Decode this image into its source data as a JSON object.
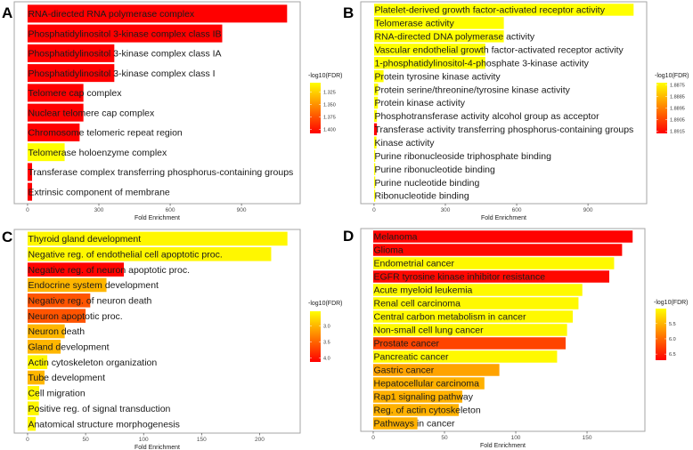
{
  "colors": {
    "low": "#FFFF00",
    "high": "#FF0000",
    "frame": "#A6A6A6"
  },
  "chart_data": [
    {
      "panel": "A",
      "type": "bar",
      "orientation": "horizontal",
      "xlabel": "Fold Enrichment",
      "xlim": [
        -56,
        1147
      ],
      "xticks": [
        0,
        300,
        600,
        900
      ],
      "legend_title": "-log10(FDR)",
      "legend_ticks": [
        1.325,
        1.35,
        1.375,
        1.4
      ],
      "legend_tick_labels": [
        "1.325",
        "1.350",
        "1.375",
        "1.400"
      ],
      "color_range": [
        1.306,
        1.408
      ],
      "legend": "right",
      "grid": false,
      "categories": [
        "RNA-directed RNA polymerase complex",
        "Phosphatidylinositol 3-kinase complex class IB",
        "Phosphatidylinositol 3-kinase complex class IA",
        "Phosphatidylinositol 3-kinase complex class I",
        "Telomere cap complex",
        "Nuclear telomere cap complex",
        "Chromosome telomeric repeat region",
        "Telomerase holoenzyme complex",
        "Transferase complex transferring phosphorus-containing groups",
        "Extrinsic component of membrane"
      ],
      "values": [
        1092,
        819,
        365,
        365,
        235,
        235,
        219,
        156,
        19,
        19
      ],
      "color_values": [
        1.408,
        1.408,
        1.408,
        1.408,
        1.408,
        1.408,
        1.408,
        1.306,
        1.408,
        1.408
      ]
    },
    {
      "panel": "B",
      "type": "bar",
      "orientation": "horizontal",
      "xlabel": "Fold Enrichment",
      "xlim": [
        -56,
        1147
      ],
      "xticks": [
        0,
        300,
        600,
        900
      ],
      "legend_title": "-log10(FDR)",
      "legend_ticks": [
        1.8875,
        1.8885,
        1.8895,
        1.8905,
        1.8915
      ],
      "legend_tick_labels": [
        "1.8875",
        "1.8885",
        "1.8895",
        "1.8905",
        "1.8915"
      ],
      "color_range": [
        1.8873,
        1.8917
      ],
      "legend": "right",
      "grid": false,
      "categories": [
        "Platelet-derived growth factor-activated receptor activity",
        "Telomerase activity",
        "RNA-directed DNA polymerase activity",
        "Vascular endothelial growth factor-activated receptor activity",
        "1-phosphatidylinositol-4-phosphate 3-kinase activity",
        "Protein tyrosine kinase activity",
        "Protein serine/threonine/tyrosine kinase activity",
        "Protein kinase activity",
        "Phosphotransferase activity alcohol group as acceptor",
        "Transferase activity transferring phosphorus-containing groups",
        "Kinase activity",
        "Purine ribonucleoside triphosphate binding",
        "Purine ribonucleotide binding",
        "Purine nucleotide binding",
        "Ribonucleotide binding"
      ],
      "values": [
        1092,
        546,
        546,
        468,
        468,
        40,
        17,
        16,
        12,
        12,
        10,
        5,
        5,
        5,
        5
      ],
      "color_values": [
        1.8873,
        1.8873,
        1.8873,
        1.8873,
        1.8873,
        1.8873,
        1.8873,
        1.8873,
        1.8873,
        1.8917,
        1.8873,
        1.8873,
        1.8873,
        1.8873,
        1.8873
      ]
    },
    {
      "panel": "C",
      "type": "bar",
      "orientation": "horizontal",
      "xlabel": "Fold Enrichment",
      "xlim": [
        -11.5,
        235
      ],
      "xticks": [
        0,
        50,
        100,
        150,
        200
      ],
      "legend_title": "-log10(FDR)",
      "legend_ticks": [
        3.0,
        3.5,
        4.0
      ],
      "legend_tick_labels": [
        "3.0",
        "3.5",
        "4.0"
      ],
      "color_range": [
        2.55,
        4.12
      ],
      "legend": "right",
      "grid": false,
      "categories": [
        "Thyroid gland development",
        "Negative reg. of endothelial cell apoptotic proc.",
        "Negative reg. of neuron apoptotic proc.",
        "Endocrine system development",
        "Negative reg. of neuron death",
        "Neuron apoptotic proc.",
        "Neuron death",
        "Gland development",
        "Actin cytoskeleton organization",
        "Tube development",
        "Cell migration",
        "Positive reg. of signal transduction",
        "Anatomical structure morphogenesis"
      ],
      "values": [
        224,
        210,
        83,
        68,
        54,
        50,
        32,
        28.5,
        17,
        14.6,
        10,
        9.7,
        7
      ],
      "color_values": [
        2.6,
        2.6,
        4.1,
        3.0,
        3.6,
        3.6,
        3.0,
        3.0,
        2.6,
        3.0,
        2.6,
        2.6,
        2.6
      ]
    },
    {
      "panel": "D",
      "type": "bar",
      "orientation": "horizontal",
      "xlabel": "Fold Enrichment",
      "xlim": [
        -8.75,
        190.6
      ],
      "xticks": [
        0,
        50,
        100,
        150
      ],
      "legend_title": "-log10(FDR)",
      "legend_ticks": [
        5.5,
        6.0,
        6.5
      ],
      "legend_tick_labels": [
        "5.5",
        "6.0",
        "6.5"
      ],
      "color_range": [
        5.01,
        6.7
      ],
      "legend": "right",
      "grid": false,
      "categories": [
        "Melanoma",
        "Glioma",
        "Endometrial cancer",
        "EGFR tyrosine kinase inhibitor resistance",
        "Acute myeloid leukemia",
        "Renal cell carcinoma",
        "Central carbon metabolism in cancer",
        "Non-small cell lung cancer",
        "Prostate cancer",
        "Pancreatic cancer",
        "Gastric cancer",
        "Hepatocellular carcinoma",
        "Rap1 signaling pathway",
        "Reg. of actin cytoskeleton",
        "Pathways in cancer"
      ],
      "values": [
        182,
        174.6,
        169,
        165.6,
        146.7,
        144,
        140,
        136,
        135,
        129,
        88.5,
        78,
        62.5,
        60,
        31
      ],
      "color_values": [
        6.68,
        6.65,
        5.05,
        6.65,
        5.05,
        5.05,
        5.05,
        5.05,
        6.25,
        5.05,
        5.62,
        5.53,
        5.53,
        5.53,
        5.53
      ]
    }
  ]
}
